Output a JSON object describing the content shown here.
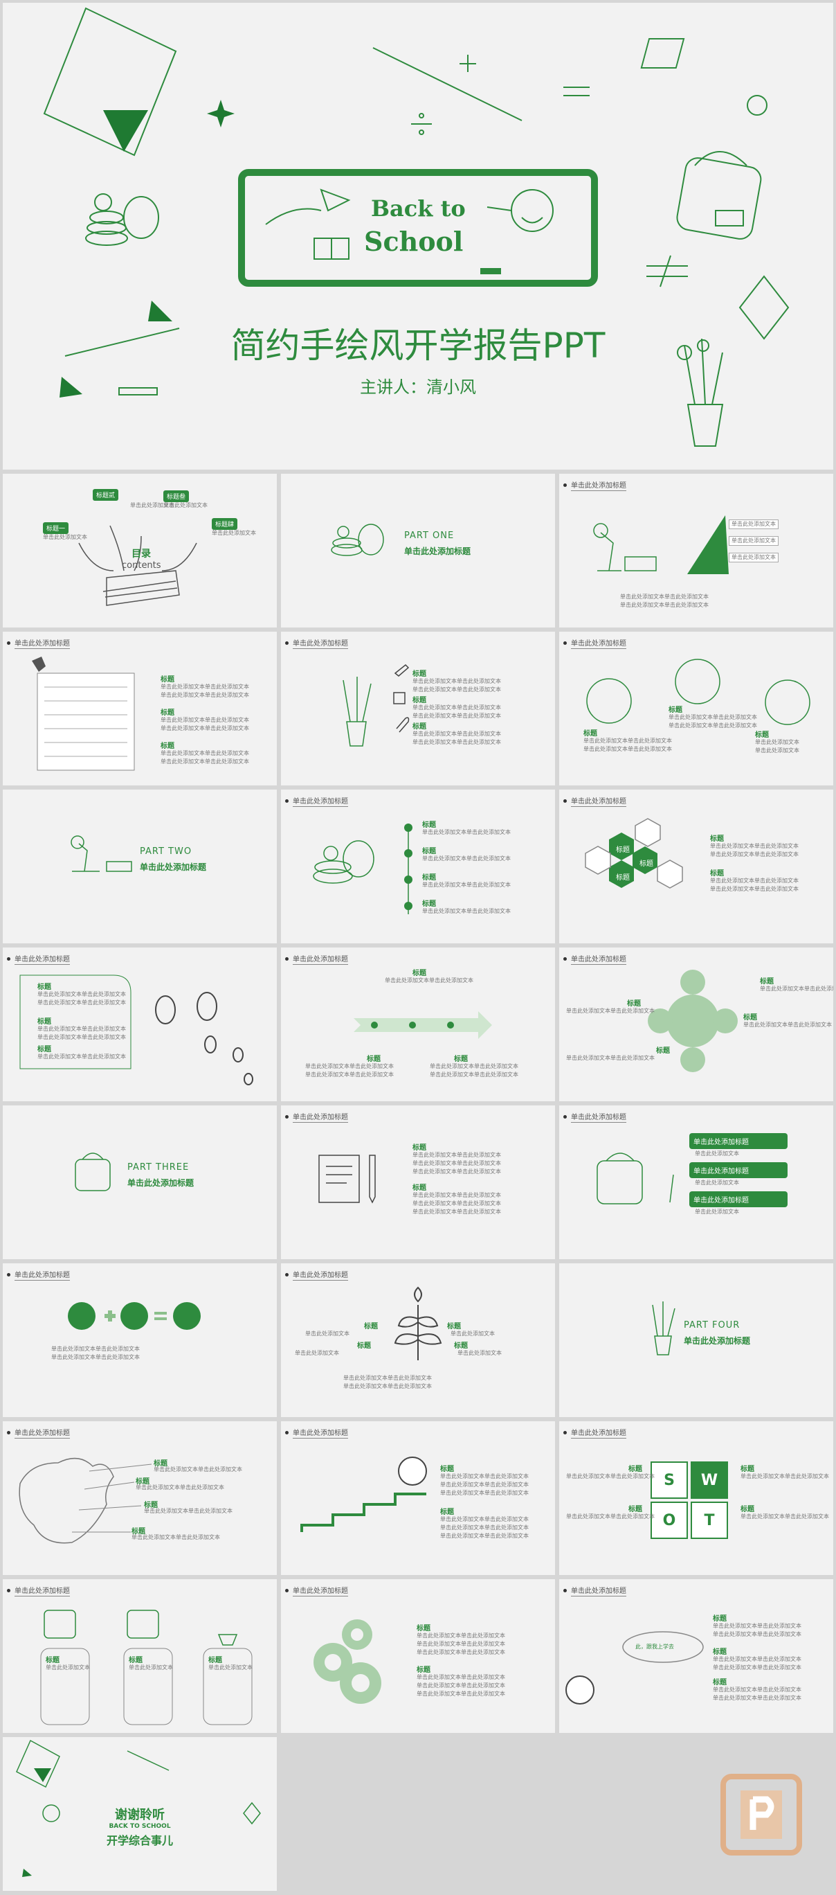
{
  "hero": {
    "board_line1": "Back to",
    "board_line2": "School",
    "title": "简约手绘风开学报告PPT",
    "presenter": "主讲人：清小风"
  },
  "header_text": "单击此处添加标题",
  "item_title": "标题",
  "body_text": "单击此处添加文本单击此处添加文本",
  "short_text": "单击此处添加文本",
  "s_toc": {
    "title": "目录",
    "subtitle": "contents",
    "tags": [
      "标题一",
      "标题贰",
      "标题叁",
      "标题肆"
    ]
  },
  "parts": [
    {
      "label": "PART  ONE",
      "sub": "单击此处添加标题"
    },
    {
      "label": "PART  TWO",
      "sub": "单击此处添加标题"
    },
    {
      "label": "PART  THREE",
      "sub": "单击此处添加标题"
    },
    {
      "label": "PART  FOUR",
      "sub": "单击此处添加标题"
    }
  ],
  "triangle_box": "单击此处添加文本",
  "hex_center": [
    "标题",
    "标题",
    "标题"
  ],
  "pills": [
    "单击此处添加标题",
    "单击此处添加标题",
    "单击此处添加标题"
  ],
  "swot": [
    "S",
    "W",
    "O",
    "T"
  ],
  "speech": "此，跟我上学去",
  "thanks": {
    "title": "谢谢聆听",
    "brand1": "BACK TO SCHOOL",
    "brand2": "开学综合事儿"
  },
  "colors": {
    "green": "#2e8b3e",
    "bg": "#f2f2f2",
    "border": "#d6d6d6"
  }
}
